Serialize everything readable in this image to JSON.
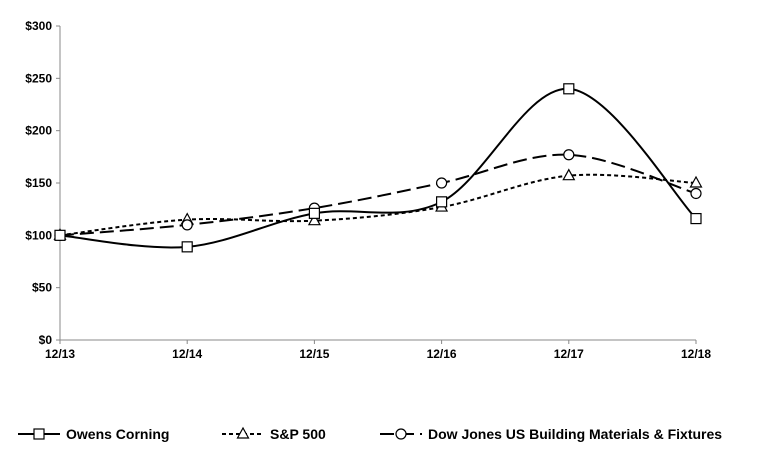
{
  "chart_data": {
    "type": "line",
    "title": "",
    "xlabel": "",
    "ylabel": "",
    "categories": [
      "12/13",
      "12/14",
      "12/15",
      "12/16",
      "12/17",
      "12/18"
    ],
    "ylim": [
      0,
      300
    ],
    "yticks": [
      0,
      50,
      100,
      150,
      200,
      250,
      300
    ],
    "ytick_labels": [
      "$0",
      "$50",
      "$100",
      "$150",
      "$200",
      "$250",
      "$300"
    ],
    "grid": false,
    "legend_position": "bottom",
    "series": [
      {
        "name": "Owens Corning",
        "marker": "square",
        "dash": "solid",
        "values": [
          100,
          89,
          121,
          132,
          240,
          116
        ]
      },
      {
        "name": "S&P 500",
        "marker": "triangle",
        "dash": "short-dash",
        "values": [
          100,
          115,
          114,
          127,
          157,
          150
        ]
      },
      {
        "name": "Dow Jones US Building Materials & Fixtures",
        "marker": "circle",
        "dash": "long-dash",
        "values": [
          100,
          110,
          126,
          150,
          177,
          140
        ]
      }
    ]
  }
}
